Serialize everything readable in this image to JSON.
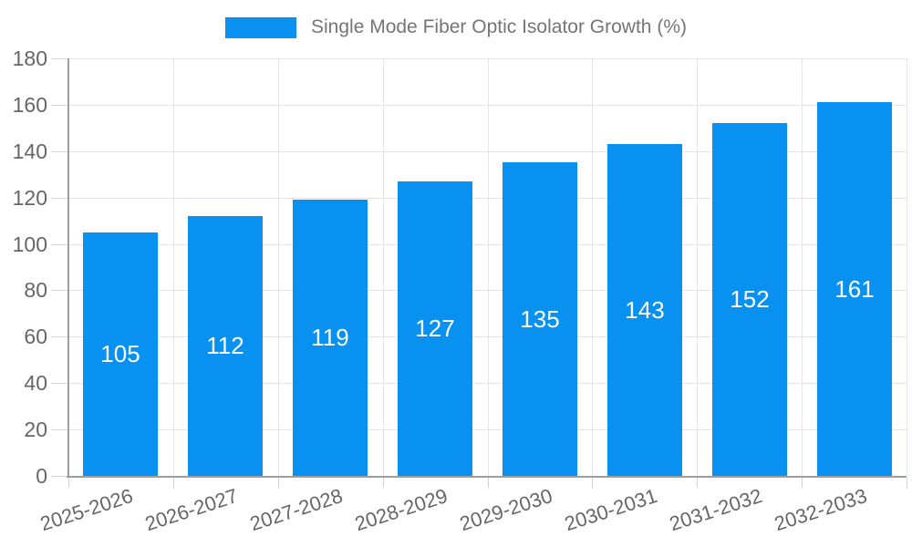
{
  "legend": {
    "label": "Single Mode Fiber Optic Isolator Growth (%)"
  },
  "chart_data": {
    "type": "bar",
    "title": "Single Mode Fiber Optic Isolator Growth (%)",
    "categories": [
      "2025-2026",
      "2026-2027",
      "2027-2028",
      "2028-2029",
      "2029-2030",
      "2030-2031",
      "2031-2032",
      "2032-2033"
    ],
    "values": [
      105,
      112,
      119,
      127,
      135,
      143,
      152,
      161
    ],
    "xlabel": "",
    "ylabel": "",
    "ylim": [
      0,
      180
    ],
    "yticks": [
      0,
      20,
      40,
      60,
      80,
      100,
      120,
      140,
      160,
      180
    ],
    "grid": true,
    "legend_position": "top",
    "value_labels": "inside-center",
    "colors": {
      "bar": "#0991f2",
      "value_text": "#ffffff",
      "axis_line": "#9e9e9e",
      "gridline": "#e4e4e4",
      "tick": "#d0d0d0",
      "axis_text": "#666666",
      "legend_text": "#757575",
      "background": "#ffffff"
    }
  }
}
